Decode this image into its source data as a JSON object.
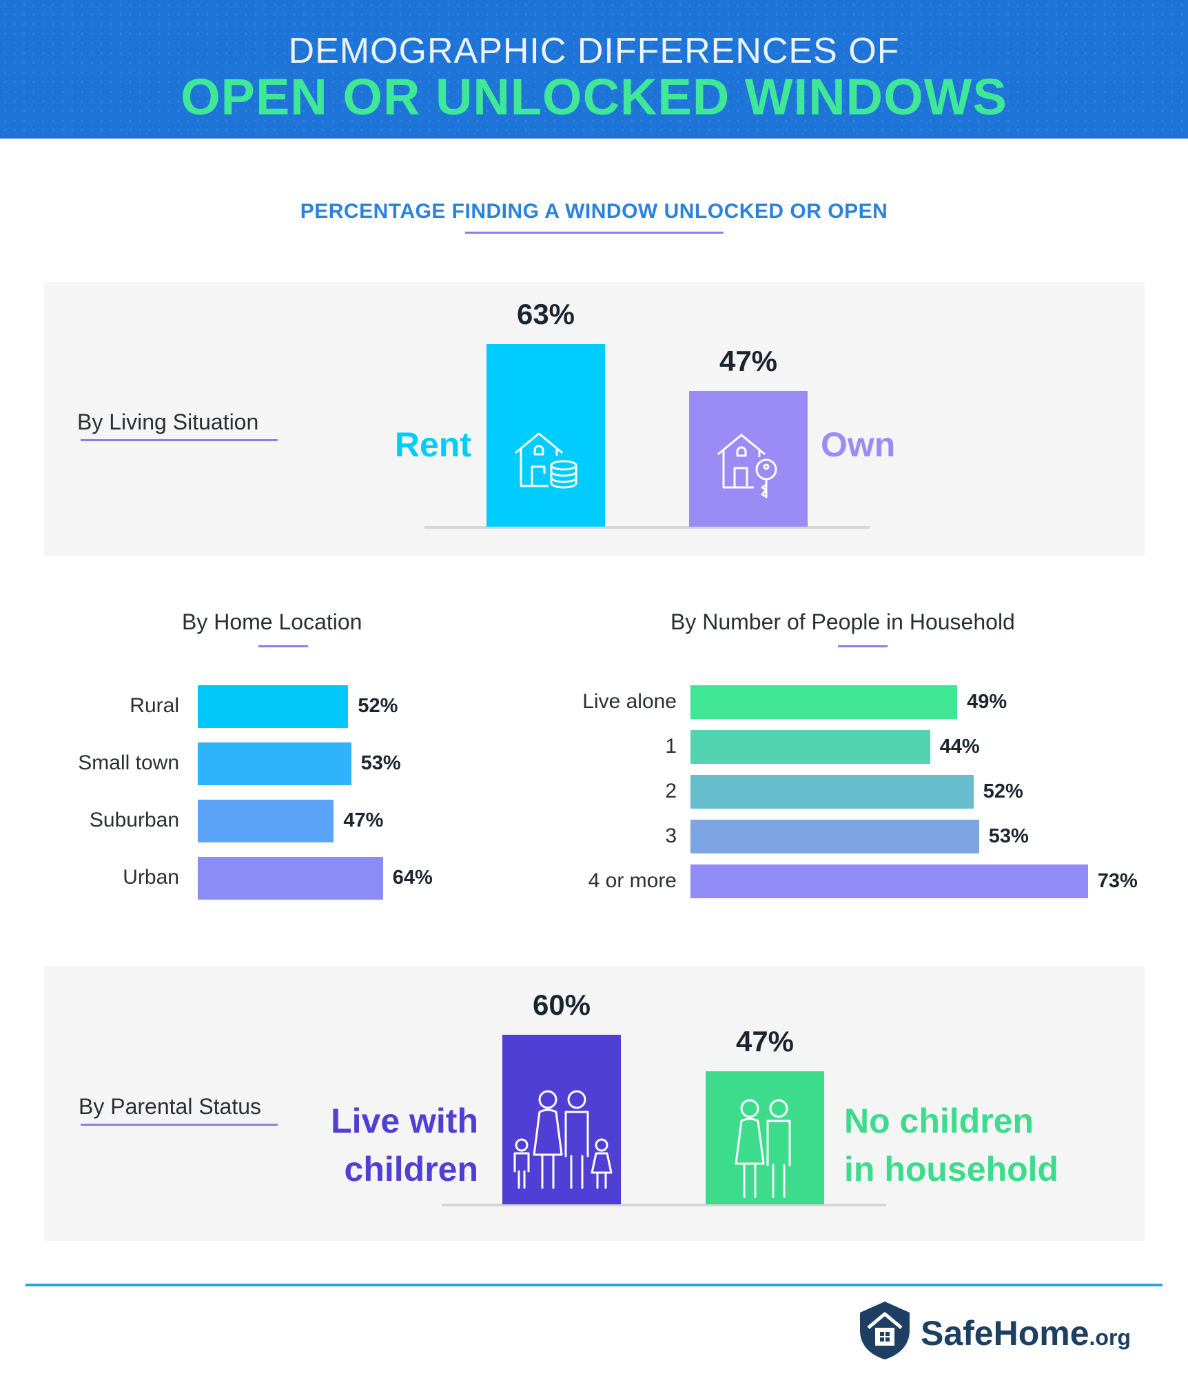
{
  "header": {
    "line1": "DEMOGRAPHIC DIFFERENCES OF",
    "line2": "OPEN OR UNLOCKED WINDOWS"
  },
  "subtitle": "PERCENTAGE FINDING A WINDOW UNLOCKED OR OPEN",
  "colors": {
    "header_bg": "#1f74d8",
    "title_green": "#3ee896",
    "cyan": "#00ccff",
    "lavender": "#9b8cf5",
    "indigo": "#4f3fd4",
    "green": "#3ddc8c"
  },
  "chart_data": [
    {
      "type": "bar",
      "title": "By Living Situation",
      "categories": [
        "Rent",
        "Own"
      ],
      "values": [
        63,
        47
      ],
      "value_labels": [
        "63%",
        "47%"
      ],
      "icons": [
        "house-coins-icon",
        "house-key-icon"
      ],
      "colors": [
        "#00ccff",
        "#9b8cf5"
      ]
    },
    {
      "type": "bar",
      "orientation": "horizontal",
      "title": "By Home Location",
      "categories": [
        "Rural",
        "Small town",
        "Suburban",
        "Urban"
      ],
      "values": [
        52,
        53,
        47,
        64
      ],
      "value_labels": [
        "52%",
        "53%",
        "47%",
        "64%"
      ],
      "colors": [
        "#00c8fb",
        "#2eb4fa",
        "#5aa3f8",
        "#8b8cf6"
      ]
    },
    {
      "type": "bar",
      "orientation": "horizontal",
      "title": "By Number of People in Household",
      "categories": [
        "Live alone",
        "1",
        "2",
        "3",
        "4 or more"
      ],
      "values": [
        49,
        44,
        52,
        53,
        73
      ],
      "value_labels": [
        "49%",
        "44%",
        "52%",
        "53%",
        "73%"
      ],
      "colors": [
        "#3fe795",
        "#52d4b0",
        "#66bdcc",
        "#7ca4e3",
        "#918cf6"
      ]
    },
    {
      "type": "bar",
      "title": "By Parental Status",
      "categories": [
        "Live with children",
        "No children in household"
      ],
      "category_lines": [
        [
          "Live with",
          "children"
        ],
        [
          "No children",
          "in household"
        ]
      ],
      "values": [
        60,
        47
      ],
      "value_labels": [
        "60%",
        "47%"
      ],
      "icons": [
        "family-icon",
        "couple-icon"
      ],
      "colors": [
        "#4f3fd4",
        "#3ddc8c"
      ]
    }
  ],
  "brand": {
    "name": "SafeHome",
    "suffix": ".org"
  }
}
